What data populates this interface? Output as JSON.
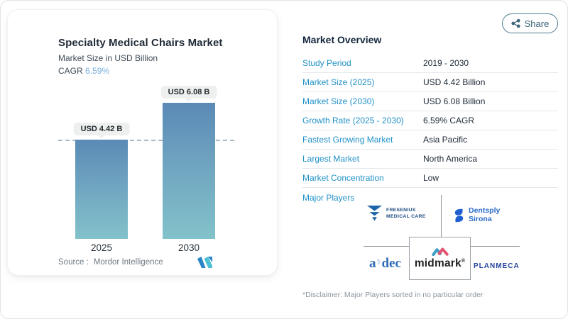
{
  "left_card": {
    "title": "Specialty Medical Chairs Market",
    "subtitle": "Market Size in USD Billion",
    "cagr_label": "CAGR",
    "cagr_value": "6.59%",
    "source_label": "Source :",
    "source_name": "Mordor Intelligence"
  },
  "chart_data": {
    "type": "bar",
    "title": "Specialty Medical Chairs Market",
    "ylabel": "Market Size in USD Billion",
    "unit": "USD Billion",
    "categories": [
      "2025",
      "2030"
    ],
    "values": [
      4.42,
      6.08
    ],
    "bar_labels": [
      "USD 4.42 B",
      "USD 6.08 B"
    ],
    "cagr": "6.59%",
    "ylim": [
      0,
      6.8
    ],
    "baseline_dashed_at": 4.42,
    "grid": "single dashed reference line at 2025 value",
    "legend": "none",
    "bar_color_top": "#5a8ab6",
    "bar_color_bottom": "#82c2ca"
  },
  "share": {
    "label": "Share"
  },
  "overview": {
    "heading": "Market Overview",
    "rows": [
      {
        "label": "Study Period",
        "value": "2019 - 2030"
      },
      {
        "label": "Market Size (2025)",
        "value": "USD 4.42 Billion"
      },
      {
        "label": "Market Size (2030)",
        "value": "USD 6.08 Billion"
      },
      {
        "label": "Growth Rate (2025 - 2030)",
        "value": "6.59% CAGR"
      },
      {
        "label": "Fastest Growing Market",
        "value": "Asia Pacific"
      },
      {
        "label": "Largest Market",
        "value": "North America"
      },
      {
        "label": "Market Concentration",
        "value": "Low"
      }
    ],
    "major_players_label": "Major Players",
    "players": {
      "fresenius": {
        "name": "Fresenius Medical Care",
        "line1": "FRESENIUS",
        "line2": "MEDICAL CARE"
      },
      "dentsply": {
        "name": "Dentsply Sirona",
        "line1": "Dentsply",
        "line2": "Sirona"
      },
      "adec": {
        "name": "A-dec",
        "part1": "a",
        "part2": "dec"
      },
      "midmark": {
        "name": "Midmark",
        "text": "midmark",
        "reg": "®"
      },
      "planmeca": {
        "name": "Planmeca",
        "text": "PLANMECA"
      }
    },
    "disclaimer": "*Disclaimer: Major Players sorted in no particular order"
  },
  "colors": {
    "label_blue": "#2191c8",
    "heading_navy": "#13263c",
    "cagr_blue": "#79aede",
    "share_teal": "#3a6478",
    "dashed_line": "#a7bac4",
    "pill_bg": "#edf0ee"
  }
}
